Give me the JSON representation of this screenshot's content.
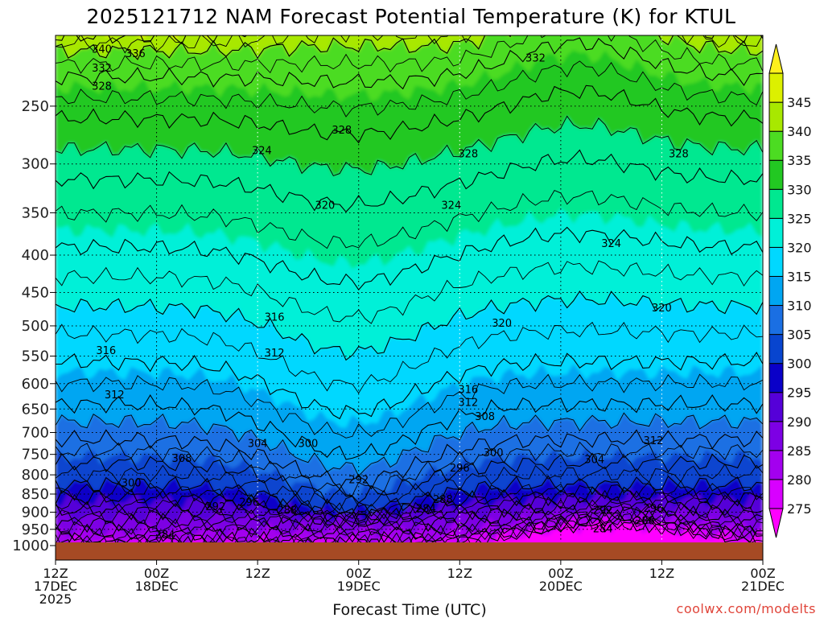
{
  "title": "2025121712 NAM Forecast Potential Temperature (K) for KTUL",
  "credit": "coolwx.com/modelts",
  "chart_data": {
    "type": "heatmap",
    "title": "2025121712 NAM Forecast Potential Temperature (K) for KTUL",
    "xlabel": "Forecast Time (UTC)",
    "ylabel": "",
    "x_ticks": [
      {
        "hours": 0,
        "lines": [
          "12Z",
          "17DEC",
          "2025"
        ]
      },
      {
        "hours": 12,
        "lines": [
          "00Z",
          "18DEC"
        ]
      },
      {
        "hours": 24,
        "lines": [
          "12Z"
        ]
      },
      {
        "hours": 36,
        "lines": [
          "00Z",
          "19DEC"
        ]
      },
      {
        "hours": 48,
        "lines": [
          "12Z"
        ]
      },
      {
        "hours": 60,
        "lines": [
          "00Z",
          "20DEC"
        ]
      },
      {
        "hours": 72,
        "lines": [
          "12Z"
        ]
      },
      {
        "hours": 84,
        "lines": [
          "00Z",
          "21DEC"
        ]
      }
    ],
    "x_range_hours": [
      0,
      84
    ],
    "y_ticks_hpa": [
      250,
      300,
      350,
      400,
      450,
      500,
      550,
      600,
      650,
      700,
      750,
      800,
      850,
      900,
      950,
      1000
    ],
    "y_range_hpa": [
      200,
      1000
    ],
    "y_scale": "log-pressure",
    "grid": true,
    "colorbar": {
      "levels": [
        275,
        280,
        285,
        290,
        295,
        300,
        305,
        310,
        315,
        320,
        325,
        330,
        335,
        340,
        345
      ],
      "colors": [
        "#ff00ff",
        "#d800ff",
        "#a300ef",
        "#7d00e4",
        "#5500d8",
        "#0a00c8",
        "#0845cf",
        "#1a6fe3",
        "#00a6f2",
        "#00d8ff",
        "#00f0d8",
        "#00e890",
        "#22c822",
        "#4cdc22",
        "#a8e800",
        "#dcf000",
        "#fff01c"
      ]
    },
    "surface_pressure_hpa": 990,
    "surface_color": "#a64a24",
    "contour_labels": [
      {
        "text": "340",
        "x": 5.5,
        "p": 209
      },
      {
        "text": "336",
        "x": 9.5,
        "p": 212
      },
      {
        "text": "332",
        "x": 5.5,
        "p": 222
      },
      {
        "text": "328",
        "x": 5.5,
        "p": 235
      },
      {
        "text": "324",
        "x": 24.5,
        "p": 288
      },
      {
        "text": "328",
        "x": 34,
        "p": 270
      },
      {
        "text": "332",
        "x": 57,
        "p": 215
      },
      {
        "text": "328",
        "x": 49,
        "p": 291
      },
      {
        "text": "328",
        "x": 74,
        "p": 291
      },
      {
        "text": "320",
        "x": 32,
        "p": 342
      },
      {
        "text": "324",
        "x": 47,
        "p": 342
      },
      {
        "text": "324",
        "x": 66,
        "p": 386
      },
      {
        "text": "320",
        "x": 72,
        "p": 473
      },
      {
        "text": "320",
        "x": 53,
        "p": 496
      },
      {
        "text": "316",
        "x": 26,
        "p": 487
      },
      {
        "text": "316",
        "x": 6,
        "p": 541
      },
      {
        "text": "312",
        "x": 26,
        "p": 545
      },
      {
        "text": "316",
        "x": 49,
        "p": 612
      },
      {
        "text": "312",
        "x": 49,
        "p": 637
      },
      {
        "text": "308",
        "x": 51,
        "p": 666
      },
      {
        "text": "312",
        "x": 7,
        "p": 622
      },
      {
        "text": "312",
        "x": 71,
        "p": 719
      },
      {
        "text": "304",
        "x": 24,
        "p": 725
      },
      {
        "text": "300",
        "x": 30,
        "p": 725
      },
      {
        "text": "300",
        "x": 52,
        "p": 747
      },
      {
        "text": "296",
        "x": 48,
        "p": 784
      },
      {
        "text": "304",
        "x": 64,
        "p": 763
      },
      {
        "text": "308",
        "x": 15,
        "p": 760
      },
      {
        "text": "300",
        "x": 9,
        "p": 821
      },
      {
        "text": "292",
        "x": 36,
        "p": 813
      },
      {
        "text": "288",
        "x": 46,
        "p": 865
      },
      {
        "text": "284",
        "x": 44,
        "p": 891
      },
      {
        "text": "292",
        "x": 19,
        "p": 885
      },
      {
        "text": "296",
        "x": 23,
        "p": 873
      },
      {
        "text": "288",
        "x": 27.5,
        "p": 895
      },
      {
        "text": "292",
        "x": 65,
        "p": 896
      },
      {
        "text": "296",
        "x": 71,
        "p": 890
      },
      {
        "text": "288",
        "x": 70,
        "p": 925
      },
      {
        "text": "284",
        "x": 65,
        "p": 949
      },
      {
        "text": "284",
        "x": 13,
        "p": 968
      }
    ]
  }
}
